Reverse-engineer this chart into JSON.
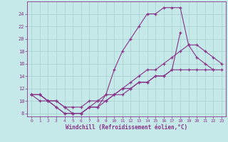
{
  "xlabel": "Windchill (Refroidissement éolien,°C)",
  "bg_color": "#c5e8e8",
  "grid_color": "#a8cece",
  "line_color": "#883388",
  "xlim": [
    -0.5,
    23.5
  ],
  "ylim": [
    7.5,
    26.0
  ],
  "xticks": [
    0,
    1,
    2,
    3,
    4,
    5,
    6,
    7,
    8,
    9,
    10,
    11,
    12,
    13,
    14,
    15,
    16,
    17,
    18,
    19,
    20,
    21,
    22,
    23
  ],
  "yticks": [
    8,
    10,
    12,
    14,
    16,
    18,
    20,
    22,
    24
  ],
  "line1_x": [
    0,
    1,
    2,
    3,
    4,
    5,
    6,
    7,
    8,
    9,
    10,
    11,
    12,
    13,
    14,
    15,
    16,
    17,
    18,
    19,
    20,
    21,
    22,
    23
  ],
  "line1_y": [
    11,
    11,
    10,
    9,
    8,
    8,
    8,
    9,
    9,
    11,
    15,
    18,
    20,
    22,
    24,
    24,
    25,
    25,
    25,
    19,
    17,
    16,
    15,
    null
  ],
  "line2_x": [
    0,
    1,
    2,
    3,
    4,
    5,
    6,
    7,
    8,
    9,
    10,
    11,
    12,
    13,
    14,
    15,
    16,
    17,
    18,
    19,
    20,
    21,
    22,
    23
  ],
  "line2_y": [
    11,
    10,
    10,
    9,
    8,
    8,
    8,
    9,
    10,
    10,
    11,
    12,
    13,
    14,
    15,
    15,
    16,
    17,
    18,
    19,
    19,
    18,
    17,
    16
  ],
  "line3_x": [
    0,
    1,
    2,
    3,
    4,
    5,
    6,
    7,
    8,
    9,
    10,
    11,
    12,
    13,
    14,
    15,
    16,
    17,
    18,
    19,
    20,
    21,
    22,
    23
  ],
  "line3_y": [
    11,
    11,
    10,
    10,
    9,
    8,
    8,
    9,
    9,
    10,
    11,
    11,
    12,
    13,
    13,
    14,
    14,
    15,
    21,
    null,
    null,
    null,
    null,
    null
  ],
  "line4_x": [
    0,
    1,
    2,
    3,
    4,
    5,
    6,
    7,
    8,
    9,
    10,
    11,
    12,
    13,
    14,
    15,
    16,
    17,
    18,
    19,
    20,
    21,
    22,
    23
  ],
  "line4_y": [
    11,
    11,
    10,
    10,
    9,
    9,
    9,
    10,
    10,
    11,
    11,
    12,
    12,
    13,
    13,
    14,
    14,
    15,
    15,
    15,
    15,
    15,
    15,
    15
  ]
}
